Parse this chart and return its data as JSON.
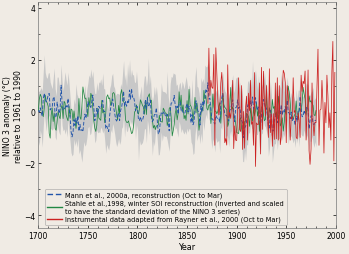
{
  "title": "",
  "ylabel": "NINO 3 anomaly (°C)\nrelative to 1961 to 1990",
  "xlabel": "Year",
  "xlim": [
    1700,
    2000
  ],
  "ylim": [
    -4.5,
    4.2
  ],
  "yticks": [
    -4,
    -2,
    0,
    2,
    4
  ],
  "xticks": [
    1700,
    1750,
    1800,
    1850,
    1900,
    1950,
    2000
  ],
  "mann_color": "#2255aa",
  "stahle_color": "#228844",
  "rayner_color": "#cc2222",
  "uncertainty_color": "#c8c8c8",
  "background_color": "#f0ebe4",
  "mann_start": 1700,
  "mann_end": 1980,
  "stahle_start": 1700,
  "stahle_end": 1980,
  "rayner_start": 1871,
  "rayner_end": 1999,
  "seed": 12345,
  "legend_fontsize": 4.8,
  "axis_fontsize": 5.8,
  "tick_fontsize": 5.5
}
